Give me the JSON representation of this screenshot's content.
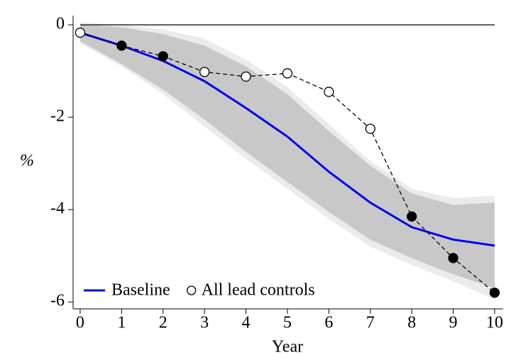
{
  "chart_data": {
    "type": "line",
    "x_label": "Year",
    "y_label": "%",
    "x": [
      0,
      1,
      2,
      3,
      4,
      5,
      6,
      7,
      8,
      9,
      10
    ],
    "xlim": [
      -0.17,
      10.2
    ],
    "ylim": [
      -6.15,
      0.2
    ],
    "xticks": [
      0,
      1,
      2,
      3,
      4,
      5,
      6,
      7,
      8,
      9,
      10
    ],
    "yticks": [
      0,
      -2,
      -4,
      -6
    ],
    "hline": 0,
    "legend": "lower left",
    "bands": [
      {
        "color": "#ebebeb",
        "upper": [
          0.05,
          0.0,
          -0.1,
          -0.3,
          -0.75,
          -1.35,
          -2.15,
          -2.95,
          -3.55,
          -3.75,
          -3.7
        ],
        "lower": [
          -0.4,
          -0.9,
          -1.5,
          -2.2,
          -2.9,
          -3.55,
          -4.2,
          -4.8,
          -5.2,
          -5.55,
          -5.95
        ]
      },
      {
        "color": "#c8c8c8",
        "upper": [
          0.0,
          -0.05,
          -0.2,
          -0.45,
          -0.9,
          -1.5,
          -2.3,
          -3.05,
          -3.65,
          -3.9,
          -3.85
        ],
        "lower": [
          -0.35,
          -0.85,
          -1.4,
          -2.05,
          -2.75,
          -3.4,
          -4.05,
          -4.65,
          -5.05,
          -5.4,
          -5.7
        ]
      }
    ],
    "series": [
      {
        "name": "Baseline",
        "color": "#0000ee",
        "style": "solid",
        "values": [
          -0.17,
          -0.45,
          -0.78,
          -1.22,
          -1.8,
          -2.42,
          -3.18,
          -3.85,
          -4.38,
          -4.65,
          -4.78
        ]
      },
      {
        "name": "All lead controls",
        "color": "#000000",
        "style": "dashed",
        "marker": "circle",
        "values": [
          -0.17,
          -0.45,
          -0.68,
          -1.02,
          -1.12,
          -1.05,
          -1.45,
          -2.25,
          -4.15,
          -5.05,
          -5.8
        ],
        "filled": [
          false,
          true,
          true,
          false,
          false,
          false,
          false,
          false,
          true,
          true,
          true
        ]
      }
    ]
  }
}
